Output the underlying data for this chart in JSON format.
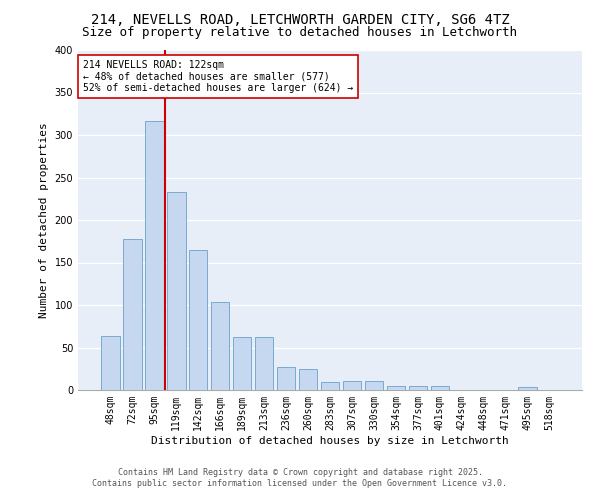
{
  "title_line1": "214, NEVELLS ROAD, LETCHWORTH GARDEN CITY, SG6 4TZ",
  "title_line2": "Size of property relative to detached houses in Letchworth",
  "xlabel": "Distribution of detached houses by size in Letchworth",
  "ylabel": "Number of detached properties",
  "categories": [
    "48sqm",
    "72sqm",
    "95sqm",
    "119sqm",
    "142sqm",
    "166sqm",
    "189sqm",
    "213sqm",
    "236sqm",
    "260sqm",
    "283sqm",
    "307sqm",
    "330sqm",
    "354sqm",
    "377sqm",
    "401sqm",
    "424sqm",
    "448sqm",
    "471sqm",
    "495sqm",
    "518sqm"
  ],
  "values": [
    63,
    178,
    317,
    233,
    165,
    103,
    62,
    62,
    27,
    25,
    9,
    11,
    11,
    5,
    5,
    5,
    0,
    0,
    0,
    3,
    0
  ],
  "bar_color": "#c5d8f0",
  "bar_edge_color": "#7aaad0",
  "vline_x": 3.0,
  "vline_color": "#cc0000",
  "annotation_text": "214 NEVELLS ROAD: 122sqm\n← 48% of detached houses are smaller (577)\n52% of semi-detached houses are larger (624) →",
  "annotation_box_color": "#ffffff",
  "annotation_box_edge": "#cc0000",
  "ylim": [
    0,
    400
  ],
  "yticks": [
    0,
    50,
    100,
    150,
    200,
    250,
    300,
    350,
    400
  ],
  "background_color": "#e8eef8",
  "footer_line1": "Contains HM Land Registry data © Crown copyright and database right 2025.",
  "footer_line2": "Contains public sector information licensed under the Open Government Licence v3.0.",
  "title_fontsize": 10,
  "subtitle_fontsize": 9,
  "axis_label_fontsize": 8,
  "tick_fontsize": 7,
  "footer_fontsize": 6
}
